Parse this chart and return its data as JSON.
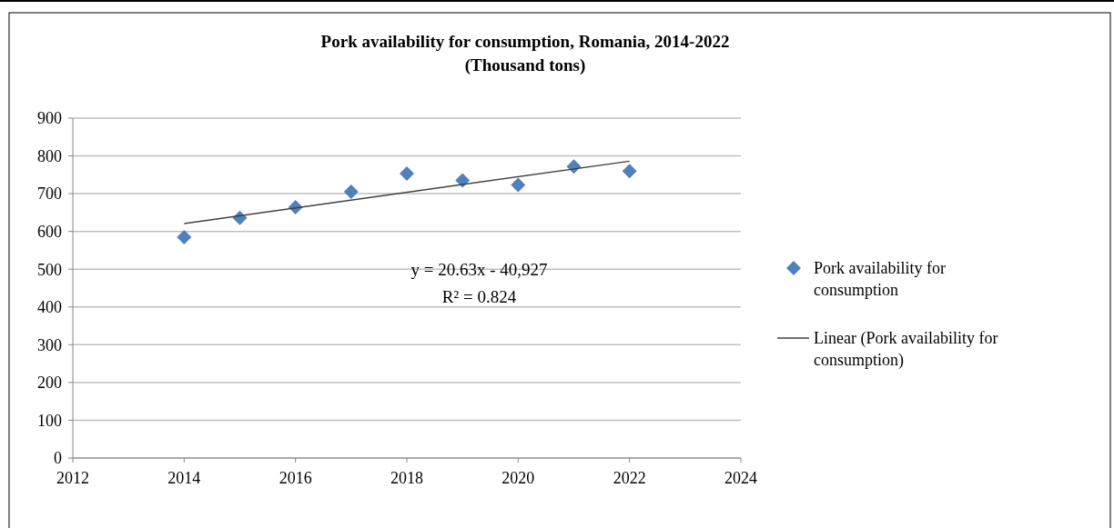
{
  "chart_data": {
    "type": "scatter",
    "title": "Pork availability for consumption, Romania, 2014-2022",
    "subtitle": "(Thousand tons)",
    "x": [
      2014,
      2015,
      2016,
      2017,
      2018,
      2019,
      2020,
      2021,
      2022
    ],
    "series": [
      {
        "name": "Pork availability for consumption",
        "type": "scatter",
        "color": "#4f81bd",
        "marker": "diamond",
        "values": [
          585,
          636,
          664,
          705,
          753,
          735,
          723,
          772,
          760
        ]
      },
      {
        "name": "Linear (Pork availability for consumption)",
        "type": "line",
        "color": "#404040",
        "marker": "none",
        "x": [
          2014,
          2022
        ],
        "values": [
          621,
          786
        ]
      }
    ],
    "annotations": [
      "y = 20.63x - 40,927",
      "R² = 0.824"
    ],
    "xlim": [
      2012,
      2024
    ],
    "xticks": [
      2012,
      2014,
      2016,
      2018,
      2020,
      2022,
      2024
    ],
    "ylim": [
      0,
      900
    ],
    "yticks": [
      0,
      100,
      200,
      300,
      400,
      500,
      600,
      700,
      800,
      900
    ],
    "grid": "y",
    "legend": "right"
  }
}
